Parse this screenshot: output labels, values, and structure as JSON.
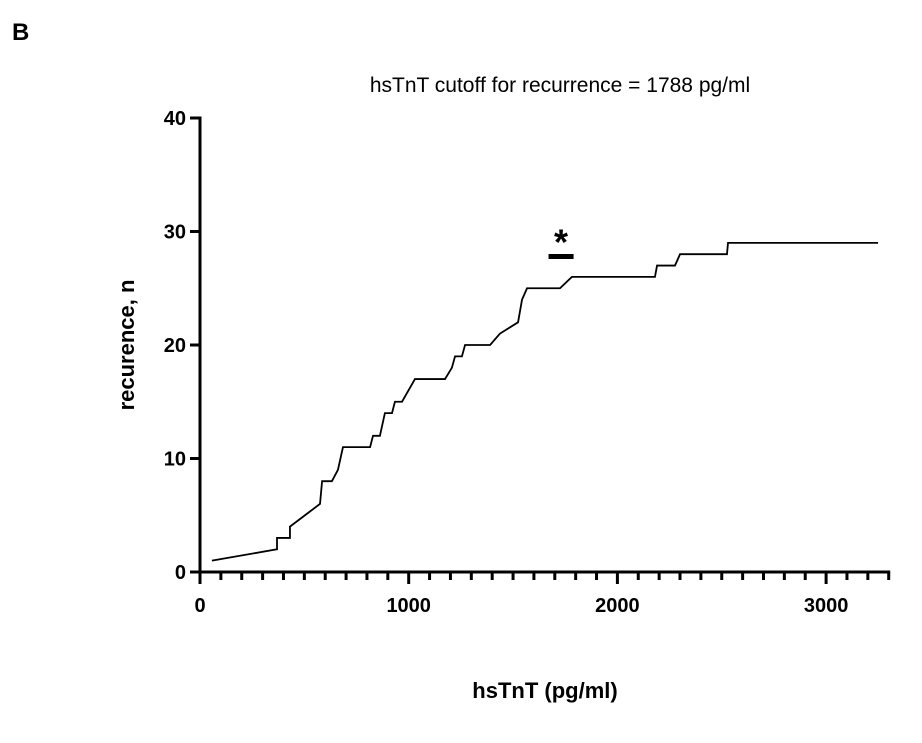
{
  "panel_label": "B",
  "chart_data": {
    "type": "line",
    "title": "hsTnT cutoff for recurrence = 1788 pg/ml",
    "xlabel": "hsTnT (pg/ml)",
    "ylabel": "recurence, n",
    "xlim": [
      0,
      3300
    ],
    "ylim": [
      0,
      40
    ],
    "xticks": [
      0,
      1000,
      2000,
      3000
    ],
    "xminorticks": [
      100,
      200,
      300,
      400,
      500,
      600,
      700,
      800,
      900,
      1100,
      1200,
      1300,
      1400,
      1500,
      1600,
      1700,
      1800,
      1900,
      2100,
      2200,
      2300,
      2400,
      2500,
      2600,
      2700,
      2800,
      2900,
      3100,
      3200,
      3300
    ],
    "yticks": [
      0,
      10,
      20,
      30,
      40
    ],
    "x": [
      57,
      369,
      369,
      431,
      431,
      575,
      585,
      632,
      661,
      685,
      815,
      829,
      862,
      886,
      920,
      934,
      968,
      1030,
      1174,
      1207,
      1222,
      1255,
      1270,
      1390,
      1437,
      1524,
      1543,
      1567,
      1725,
      1782,
      2180,
      2190,
      2276,
      2300,
      2525,
      2530,
      3249
    ],
    "series": [
      {
        "name": "recurrence",
        "color": "#000000",
        "values": [
          1,
          2,
          3,
          3,
          4,
          6,
          8,
          8,
          9,
          11,
          11,
          12,
          12,
          14,
          14,
          15,
          15,
          17,
          17,
          18,
          19,
          19,
          20,
          20,
          21,
          22,
          24,
          25,
          25,
          26,
          26,
          27,
          27,
          28,
          28,
          29,
          29
        ]
      }
    ],
    "annotations": [
      {
        "text": "*",
        "x": [
          1670,
          1790
        ],
        "y": 27.8
      }
    ]
  }
}
